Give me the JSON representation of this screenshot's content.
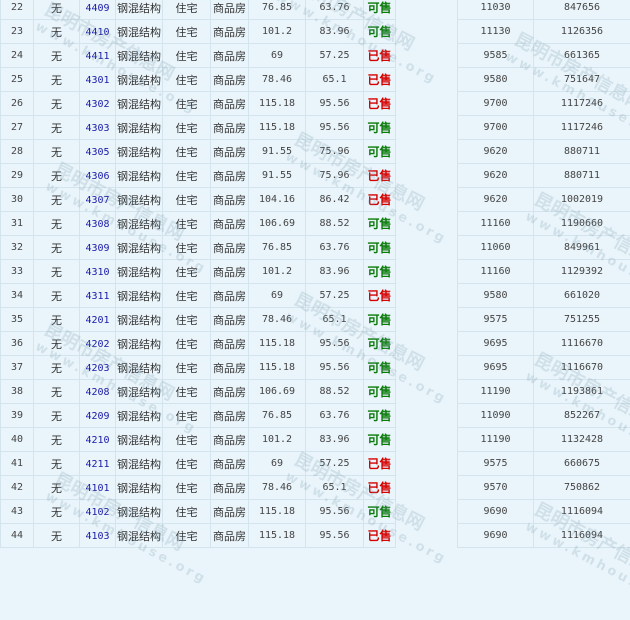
{
  "watermark": {
    "cn": "昆明市房产信息网",
    "url": "www.kmhouse.org"
  },
  "colors": {
    "available": "#0a7a0a",
    "sold": "#d40000",
    "link": "#1a1aa6",
    "background": "#eaf5fb"
  },
  "rows": [
    {
      "no": "22",
      "mark": "无",
      "room": "4409",
      "structure": "钢混结构",
      "use": "住宅",
      "type": "商品房",
      "area": "76.85",
      "inner_area": "63.76",
      "status": "可售",
      "unit_price": "11030",
      "total": "847656"
    },
    {
      "no": "23",
      "mark": "无",
      "room": "4410",
      "structure": "钢混结构",
      "use": "住宅",
      "type": "商品房",
      "area": "101.2",
      "inner_area": "83.96",
      "status": "可售",
      "unit_price": "11130",
      "total": "1126356"
    },
    {
      "no": "24",
      "mark": "无",
      "room": "4411",
      "structure": "钢混结构",
      "use": "住宅",
      "type": "商品房",
      "area": "69",
      "inner_area": "57.25",
      "status": "已售",
      "unit_price": "9585",
      "total": "661365"
    },
    {
      "no": "25",
      "mark": "无",
      "room": "4301",
      "structure": "钢混结构",
      "use": "住宅",
      "type": "商品房",
      "area": "78.46",
      "inner_area": "65.1",
      "status": "已售",
      "unit_price": "9580",
      "total": "751647"
    },
    {
      "no": "26",
      "mark": "无",
      "room": "4302",
      "structure": "钢混结构",
      "use": "住宅",
      "type": "商品房",
      "area": "115.18",
      "inner_area": "95.56",
      "status": "已售",
      "unit_price": "9700",
      "total": "1117246"
    },
    {
      "no": "27",
      "mark": "无",
      "room": "4303",
      "structure": "钢混结构",
      "use": "住宅",
      "type": "商品房",
      "area": "115.18",
      "inner_area": "95.56",
      "status": "可售",
      "unit_price": "9700",
      "total": "1117246"
    },
    {
      "no": "28",
      "mark": "无",
      "room": "4305",
      "structure": "钢混结构",
      "use": "住宅",
      "type": "商品房",
      "area": "91.55",
      "inner_area": "75.96",
      "status": "可售",
      "unit_price": "9620",
      "total": "880711"
    },
    {
      "no": "29",
      "mark": "无",
      "room": "4306",
      "structure": "钢混结构",
      "use": "住宅",
      "type": "商品房",
      "area": "91.55",
      "inner_area": "75.96",
      "status": "已售",
      "unit_price": "9620",
      "total": "880711"
    },
    {
      "no": "30",
      "mark": "无",
      "room": "4307",
      "structure": "钢混结构",
      "use": "住宅",
      "type": "商品房",
      "area": "104.16",
      "inner_area": "86.42",
      "status": "已售",
      "unit_price": "9620",
      "total": "1002019"
    },
    {
      "no": "31",
      "mark": "无",
      "room": "4308",
      "structure": "钢混结构",
      "use": "住宅",
      "type": "商品房",
      "area": "106.69",
      "inner_area": "88.52",
      "status": "可售",
      "unit_price": "11160",
      "total": "1190660"
    },
    {
      "no": "32",
      "mark": "无",
      "room": "4309",
      "structure": "钢混结构",
      "use": "住宅",
      "type": "商品房",
      "area": "76.85",
      "inner_area": "63.76",
      "status": "可售",
      "unit_price": "11060",
      "total": "849961"
    },
    {
      "no": "33",
      "mark": "无",
      "room": "4310",
      "structure": "钢混结构",
      "use": "住宅",
      "type": "商品房",
      "area": "101.2",
      "inner_area": "83.96",
      "status": "可售",
      "unit_price": "11160",
      "total": "1129392"
    },
    {
      "no": "34",
      "mark": "无",
      "room": "4311",
      "structure": "钢混结构",
      "use": "住宅",
      "type": "商品房",
      "area": "69",
      "inner_area": "57.25",
      "status": "已售",
      "unit_price": "9580",
      "total": "661020"
    },
    {
      "no": "35",
      "mark": "无",
      "room": "4201",
      "structure": "钢混结构",
      "use": "住宅",
      "type": "商品房",
      "area": "78.46",
      "inner_area": "65.1",
      "status": "可售",
      "unit_price": "9575",
      "total": "751255"
    },
    {
      "no": "36",
      "mark": "无",
      "room": "4202",
      "structure": "钢混结构",
      "use": "住宅",
      "type": "商品房",
      "area": "115.18",
      "inner_area": "95.56",
      "status": "可售",
      "unit_price": "9695",
      "total": "1116670"
    },
    {
      "no": "37",
      "mark": "无",
      "room": "4203",
      "structure": "钢混结构",
      "use": "住宅",
      "type": "商品房",
      "area": "115.18",
      "inner_area": "95.56",
      "status": "可售",
      "unit_price": "9695",
      "total": "1116670"
    },
    {
      "no": "38",
      "mark": "无",
      "room": "4208",
      "structure": "钢混结构",
      "use": "住宅",
      "type": "商品房",
      "area": "106.69",
      "inner_area": "88.52",
      "status": "可售",
      "unit_price": "11190",
      "total": "1193861"
    },
    {
      "no": "39",
      "mark": "无",
      "room": "4209",
      "structure": "钢混结构",
      "use": "住宅",
      "type": "商品房",
      "area": "76.85",
      "inner_area": "63.76",
      "status": "可售",
      "unit_price": "11090",
      "total": "852267"
    },
    {
      "no": "40",
      "mark": "无",
      "room": "4210",
      "structure": "钢混结构",
      "use": "住宅",
      "type": "商品房",
      "area": "101.2",
      "inner_area": "83.96",
      "status": "可售",
      "unit_price": "11190",
      "total": "1132428"
    },
    {
      "no": "41",
      "mark": "无",
      "room": "4211",
      "structure": "钢混结构",
      "use": "住宅",
      "type": "商品房",
      "area": "69",
      "inner_area": "57.25",
      "status": "已售",
      "unit_price": "9575",
      "total": "660675"
    },
    {
      "no": "42",
      "mark": "无",
      "room": "4101",
      "structure": "钢混结构",
      "use": "住宅",
      "type": "商品房",
      "area": "78.46",
      "inner_area": "65.1",
      "status": "已售",
      "unit_price": "9570",
      "total": "750862"
    },
    {
      "no": "43",
      "mark": "无",
      "room": "4102",
      "structure": "钢混结构",
      "use": "住宅",
      "type": "商品房",
      "area": "115.18",
      "inner_area": "95.56",
      "status": "可售",
      "unit_price": "9690",
      "total": "1116094"
    },
    {
      "no": "44",
      "mark": "无",
      "room": "4103",
      "structure": "钢混结构",
      "use": "住宅",
      "type": "商品房",
      "area": "115.18",
      "inner_area": "95.56",
      "status": "已售",
      "unit_price": "9690",
      "total": "1116094"
    }
  ]
}
